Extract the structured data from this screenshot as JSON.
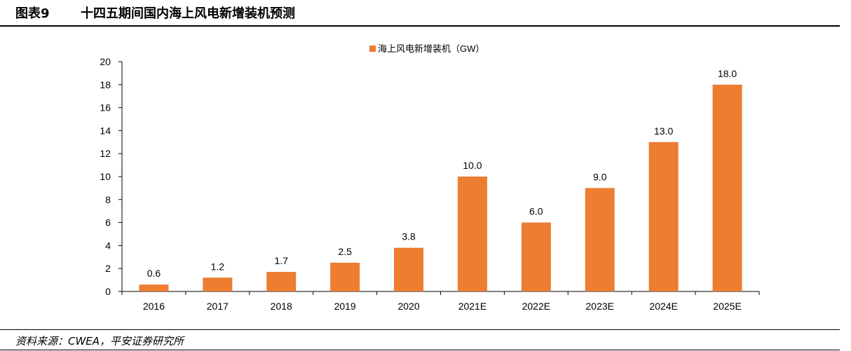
{
  "header": {
    "figure_label": "图表9",
    "title": "十四五期间国内海上风电新增装机预测"
  },
  "footer": {
    "source": "资料来源：CWEA，平安证券研究所"
  },
  "colors": {
    "bar": "#ED7D31",
    "axis": "#000000"
  },
  "chart_data": {
    "type": "bar",
    "title": "",
    "xlabel": "",
    "ylabel": "",
    "categories": [
      "2016",
      "2017",
      "2018",
      "2019",
      "2020",
      "2021E",
      "2022E",
      "2023E",
      "2024E",
      "2025E"
    ],
    "series": [
      {
        "name": "海上风电新增装机（GW）",
        "values": [
          0.6,
          1.2,
          1.7,
          2.5,
          3.8,
          10.0,
          6.0,
          9.0,
          13.0,
          18.0
        ],
        "labels": [
          "0.6",
          "1.2",
          "1.7",
          "2.5",
          "3.8",
          "10.0",
          "6.0",
          "9.0",
          "13.0",
          "18.0"
        ]
      }
    ],
    "yticks": [
      "0",
      "2",
      "4",
      "6",
      "8",
      "10",
      "12",
      "14",
      "16",
      "18",
      "20"
    ],
    "ylim": [
      0,
      20
    ],
    "grid": false,
    "legend": "top-center"
  }
}
